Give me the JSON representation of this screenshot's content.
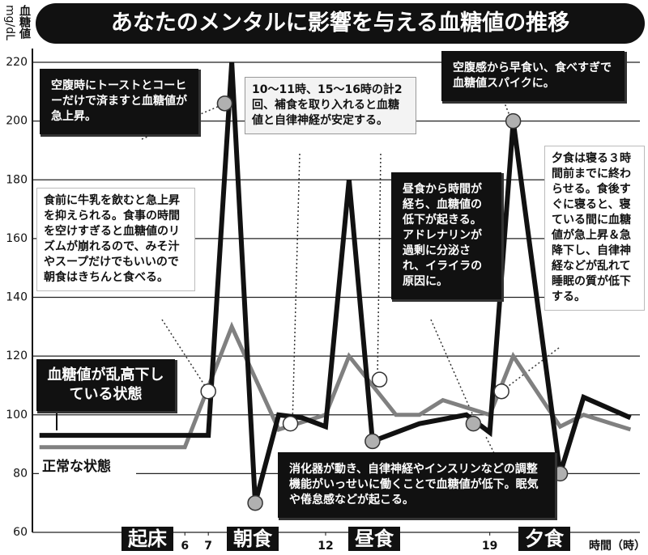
{
  "chart_data": {
    "type": "line",
    "title": "あなたのメンタルに影響を与える血糖値の推移",
    "y_label": "血糖値",
    "y_unit": "mg/dL",
    "x_label": "時間（時）",
    "xlim": [
      -0.5,
      25.4
    ],
    "xticks": [
      6,
      7,
      12,
      19
    ],
    "ylim": [
      60,
      220
    ],
    "yticks": [
      60,
      80,
      100,
      120,
      140,
      160,
      180,
      200,
      220
    ],
    "grid": true,
    "meal_labels": [
      "起床",
      "朝食",
      "昼食",
      "夕食"
    ],
    "series": [
      {
        "name": "正常な状態",
        "color": "#808080",
        "x": [
          -0.2,
          6,
          8,
          10,
          12,
          13,
          15,
          16,
          17,
          19,
          20,
          22,
          23,
          25
        ],
        "values": [
          89,
          89,
          130,
          95,
          100,
          120,
          100,
          100,
          105,
          100,
          120,
          96,
          100,
          95
        ]
      },
      {
        "name": "血糖値が乱高下している状態",
        "color": "#111111",
        "x": [
          -0.2,
          6,
          7,
          8,
          9,
          10,
          11,
          12,
          13,
          14,
          16,
          18,
          19,
          20,
          22,
          23,
          25
        ],
        "values": [
          93,
          93,
          93,
          220,
          70,
          100,
          99,
          96,
          180,
          91,
          97,
          100,
          94,
          200,
          80,
          106,
          99
        ]
      }
    ],
    "markers": [
      {
        "x": 7,
        "y": 108,
        "fill": "#ffffff"
      },
      {
        "x": 7.7,
        "y": 206,
        "fill": "#b0b0b0"
      },
      {
        "x": 9,
        "y": 70,
        "fill": "#b0b0b0"
      },
      {
        "x": 10.5,
        "y": 97,
        "fill": "#ffffff"
      },
      {
        "x": 14,
        "y": 91,
        "fill": "#b0b0b0"
      },
      {
        "x": 14.3,
        "y": 112,
        "fill": "#ffffff"
      },
      {
        "x": 18.3,
        "y": 97,
        "fill": "#b0b0b0"
      },
      {
        "x": 19.5,
        "y": 108,
        "fill": "#ffffff"
      },
      {
        "x": 20,
        "y": 200,
        "fill": "#b0b0b0"
      },
      {
        "x": 22,
        "y": 80,
        "fill": "#b0b0b0"
      }
    ],
    "annotations": [
      "空腹時にトーストとコーヒーだけで済ますと血糖値が急上昇。",
      "10〜11時、15〜16時の計2回、補食を取り入れると血糖値と自律神経が安定する。",
      "空腹感から早食い、食べすぎで血糖値スパイクに。",
      "食前に牛乳を飲むと急上昇を抑えられる。食事の時間を空けすぎると血糖値のリズムが崩れるので、みそ汁やスープだけでもいいので朝食はきちんと食べる。",
      "昼食から時間が経ち、血糖値の低下が起きる。アドレナリンが過剰に分泌され、イライラの原因に。",
      "夕食は寝る３時間前までに終わらせる。食後すぐに寝ると、寝ている間に血糖値が急上昇＆急降下し、自律神経などが乱れて睡眠の質が低下する。",
      "消化器が動き、自律神経やインスリンなどの調整機能がいっせいに働くことで血糖値が低下。眠気や倦怠感などが起こる。"
    ]
  }
}
